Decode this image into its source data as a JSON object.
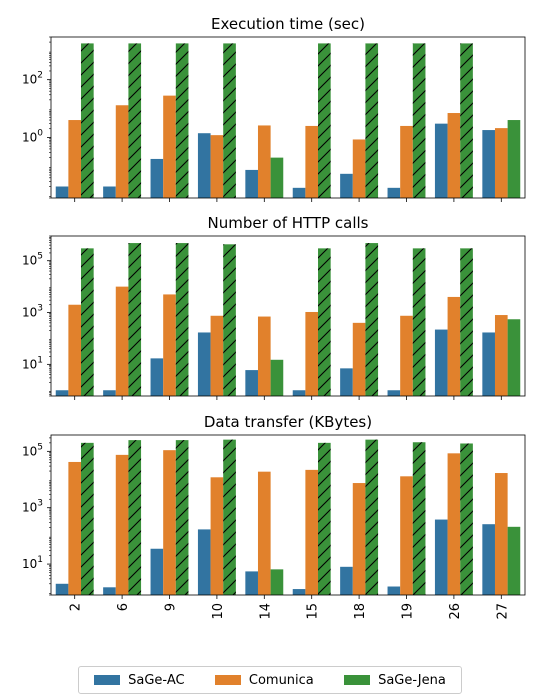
{
  "chart_data": [
    {
      "type": "bar",
      "title": "Execution time (sec)",
      "yscale": "log",
      "ylim": [
        0.008,
        3000
      ],
      "yticks": [
        {
          "v": 1,
          "base": "10",
          "exp": "0"
        },
        {
          "v": 100,
          "base": "10",
          "exp": "2"
        }
      ],
      "categories": [
        "2",
        "6",
        "9",
        "10",
        "14",
        "15",
        "18",
        "19",
        "26",
        "27"
      ],
      "series": [
        {
          "name": "SaGe-AC",
          "values": [
            0.02,
            0.02,
            0.18,
            1.4,
            0.075,
            0.018,
            0.055,
            0.018,
            3.0,
            1.8
          ]
        },
        {
          "name": "Comunica",
          "values": [
            4.0,
            13.0,
            28.0,
            1.2,
            2.6,
            2.5,
            0.85,
            2.5,
            7.0,
            2.1
          ]
        },
        {
          "name": "SaGe-Jena",
          "values": [
            1800,
            1800,
            1800,
            1800,
            0.2,
            1800,
            1800,
            1800,
            1800,
            4.0
          ],
          "hatched": [
            true,
            true,
            true,
            true,
            false,
            true,
            true,
            true,
            true,
            false
          ]
        }
      ]
    },
    {
      "type": "bar",
      "title": "Number of HTTP calls",
      "yscale": "log",
      "ylim": [
        0.6,
        900000
      ],
      "yticks": [
        {
          "v": 10,
          "base": "10",
          "exp": "1"
        },
        {
          "v": 1000,
          "base": "10",
          "exp": "3"
        },
        {
          "v": 100000,
          "base": "10",
          "exp": "5"
        }
      ],
      "categories": [
        "2",
        "6",
        "9",
        "10",
        "14",
        "15",
        "18",
        "19",
        "26",
        "27"
      ],
      "series": [
        {
          "name": "SaGe-AC",
          "values": [
            1,
            1,
            17,
            170,
            6,
            1,
            7,
            1,
            220,
            170
          ]
        },
        {
          "name": "Comunica",
          "values": [
            2000,
            10000,
            5000,
            750,
            700,
            1050,
            400,
            750,
            4000,
            800
          ]
        },
        {
          "name": "SaGe-Jena",
          "values": [
            300000,
            480000,
            480000,
            430000,
            15,
            300000,
            480000,
            300000,
            300000,
            550
          ],
          "hatched": [
            true,
            true,
            true,
            true,
            false,
            true,
            true,
            true,
            true,
            false
          ]
        }
      ]
    },
    {
      "type": "bar",
      "title": "Data transfer (KBytes)",
      "yscale": "log",
      "ylim": [
        0.8,
        380000
      ],
      "yticks": [
        {
          "v": 10,
          "base": "10",
          "exp": "1"
        },
        {
          "v": 1000,
          "base": "10",
          "exp": "3"
        },
        {
          "v": 100000,
          "base": "10",
          "exp": "5"
        }
      ],
      "categories": [
        "2",
        "6",
        "9",
        "10",
        "14",
        "15",
        "18",
        "19",
        "26",
        "27"
      ],
      "series": [
        {
          "name": "SaGe-AC",
          "values": [
            2.0,
            1.5,
            35,
            170,
            5.5,
            1.3,
            8,
            1.6,
            380,
            260
          ]
        },
        {
          "name": "Comunica",
          "values": [
            42000,
            75000,
            110000,
            12000,
            19000,
            22000,
            7500,
            13000,
            85000,
            17000
          ]
        },
        {
          "name": "SaGe-Jena",
          "values": [
            200000,
            250000,
            250000,
            260000,
            6.5,
            200000,
            260000,
            210000,
            190000,
            210
          ],
          "hatched": [
            true,
            true,
            true,
            true,
            false,
            true,
            true,
            true,
            true,
            false
          ]
        }
      ]
    }
  ],
  "legend": {
    "items": [
      {
        "label": "SaGe-AC",
        "color": "#3274a1"
      },
      {
        "label": "Comunica",
        "color": "#e1812c"
      },
      {
        "label": "SaGe-Jena",
        "color": "#3a923a"
      }
    ]
  }
}
